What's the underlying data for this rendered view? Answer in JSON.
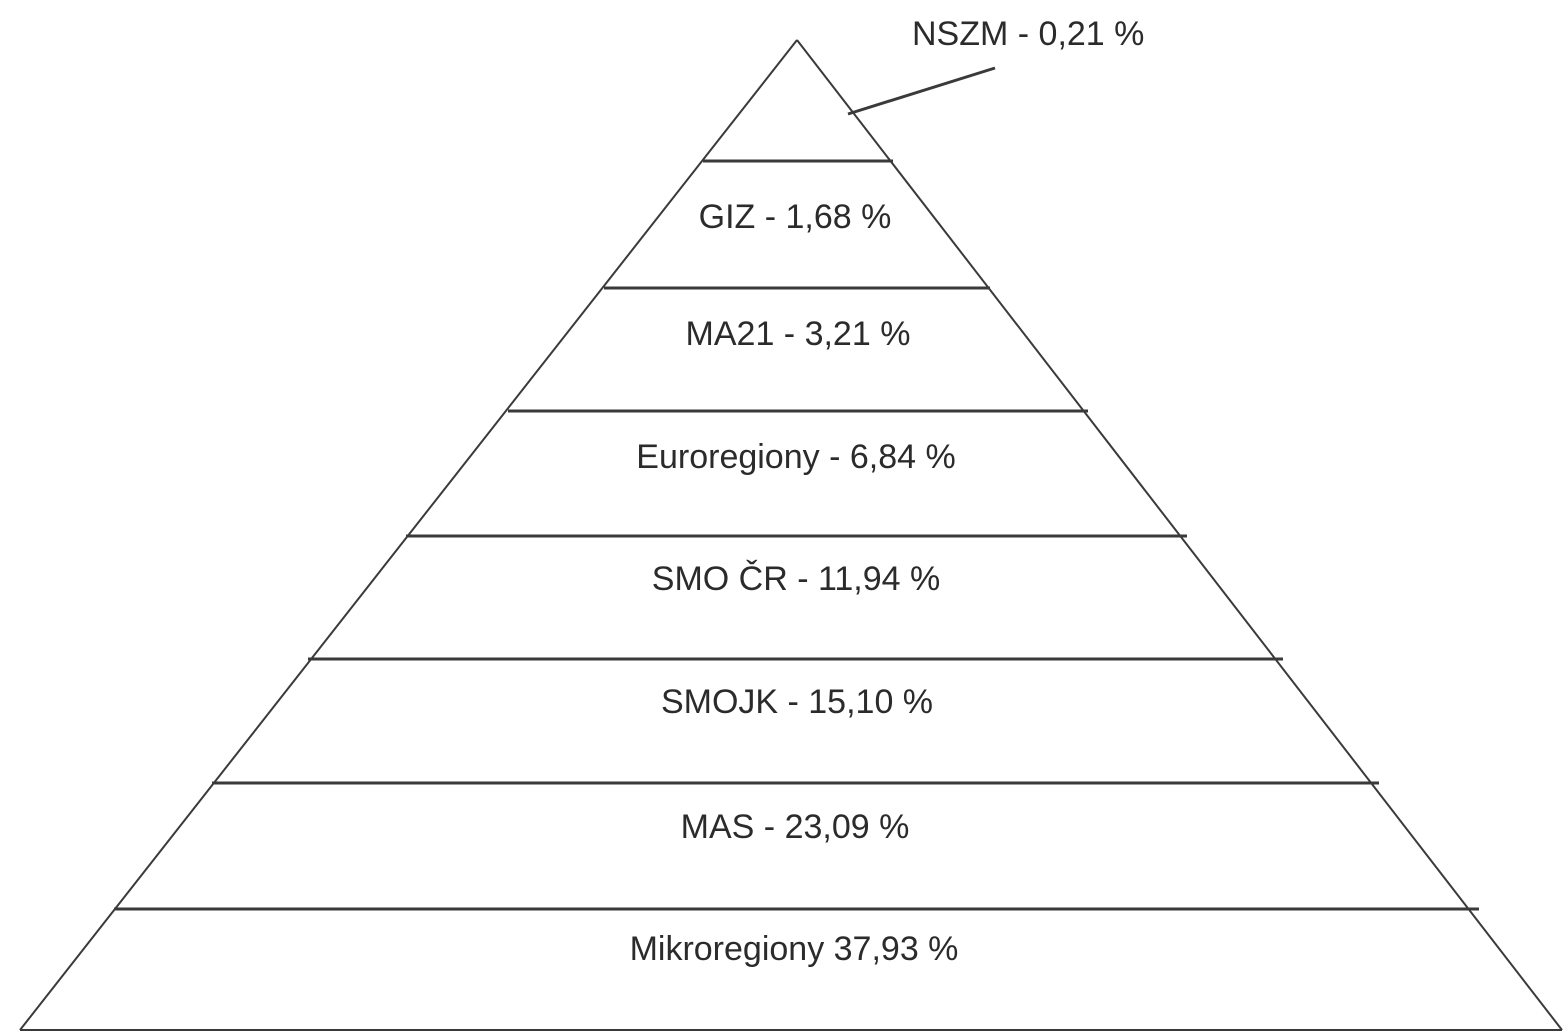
{
  "pyramid": {
    "tiers": [
      {
        "label": "NSZM - 0,21 %",
        "name": "NSZM",
        "percent": 0.21
      },
      {
        "label": "GIZ - 1,68 %",
        "name": "GIZ",
        "percent": 1.68
      },
      {
        "label": "MA21 - 3,21 %",
        "name": "MA21",
        "percent": 3.21
      },
      {
        "label": "Euroregiony - 6,84 %",
        "name": "Euroregiony",
        "percent": 6.84
      },
      {
        "label": "SMO ČR - 11,94 %",
        "name": "SMO ČR",
        "percent": 11.94
      },
      {
        "label": "SMOJK - 15,10 %",
        "name": "SMOJK",
        "percent": 15.1
      },
      {
        "label": "MAS - 23,09 %",
        "name": "MAS",
        "percent": 23.09
      },
      {
        "label": "Mikroregiony 37,93 %",
        "name": "Mikroregiony",
        "percent": 37.93
      }
    ],
    "colors": {
      "line": "#3a3a3a",
      "text": "#2b2b2b",
      "background": "#ffffff"
    }
  }
}
